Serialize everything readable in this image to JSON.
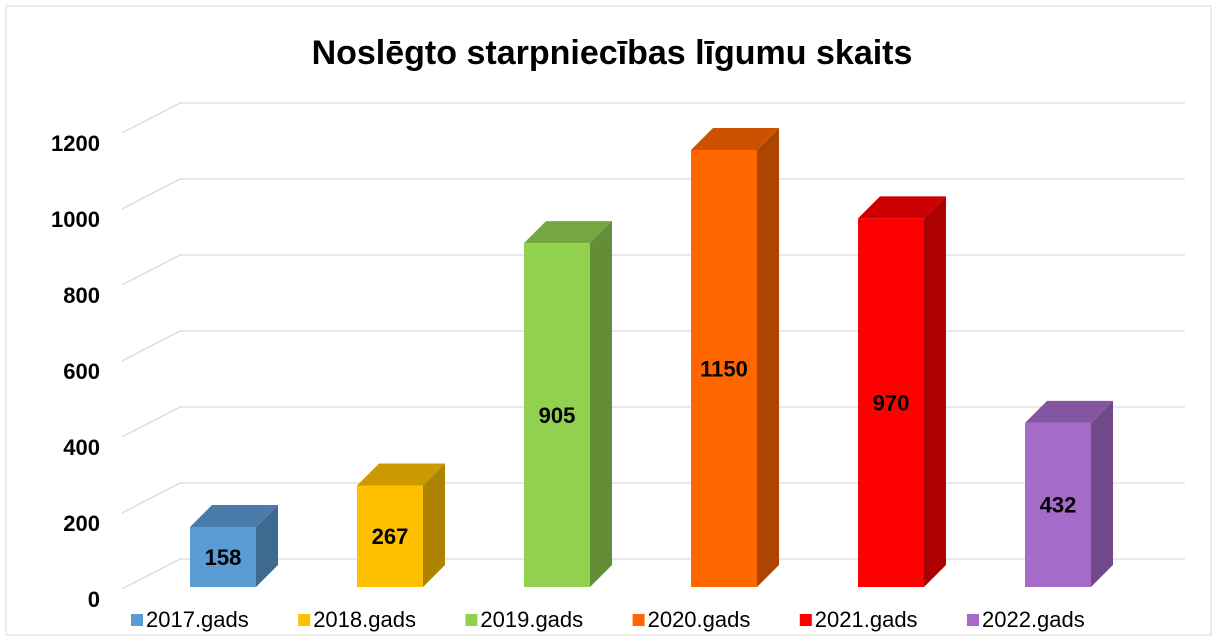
{
  "chart_data": {
    "type": "bar3d",
    "title": "Noslēgto starpniecības līgumu skaits",
    "categories": [
      "2017.gads",
      "2018.gads",
      "2019.gads",
      "2020.gads",
      "2021.gads",
      "2022.gads"
    ],
    "values": [
      158,
      267,
      905,
      1150,
      970,
      432
    ],
    "colors": [
      "#5b9bd5",
      "#ffc000",
      "#92d050",
      "#ff6600",
      "#ff0000",
      "#a66bc8"
    ],
    "ylim": [
      0,
      1200
    ],
    "yticks": [
      0,
      200,
      400,
      600,
      800,
      1000,
      1200
    ],
    "grid": true,
    "legend": "bottom"
  }
}
